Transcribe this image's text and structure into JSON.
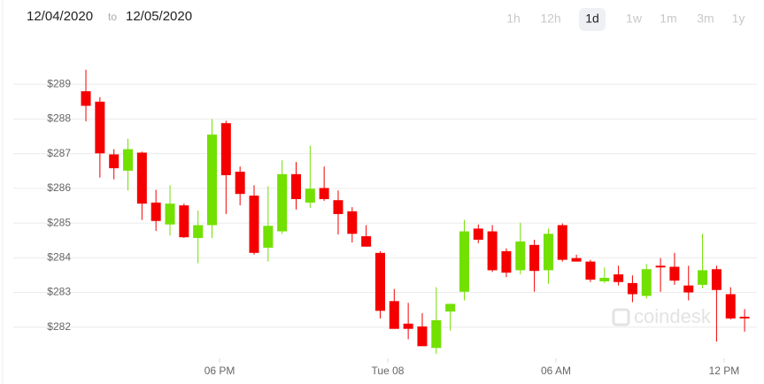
{
  "chart_data": {
    "type": "candlestick",
    "date_from": "12/04/2020",
    "date_sep": "to",
    "date_to": "12/05/2020",
    "ranges": [
      "1h",
      "12h",
      "1d",
      "1w",
      "1m",
      "3m",
      "1y"
    ],
    "selected_range": 2,
    "watermark": "coindesk",
    "up_color": "#72e000",
    "down_color": "#f40000",
    "grid": true,
    "x": [
      0,
      1,
      2,
      3,
      4,
      5,
      6,
      7,
      8,
      9,
      10,
      11,
      12,
      13,
      14,
      15,
      16,
      17,
      18,
      19,
      20,
      21,
      22,
      23,
      24,
      25,
      26,
      27,
      28,
      29,
      30,
      31,
      32,
      33,
      34,
      35,
      36,
      37,
      38,
      39,
      40,
      41,
      42,
      43,
      44,
      45,
      46,
      47
    ],
    "open": [
      288.8,
      288.5,
      286.98,
      286.51,
      287.03,
      285.59,
      284.96,
      285.51,
      284.57,
      284.94,
      287.88,
      286.48,
      285.79,
      284.29,
      284.76,
      286.41,
      285.59,
      286.01,
      285.66,
      285.34,
      284.62,
      284.14,
      282.75,
      282.1,
      282.02,
      281.4,
      282.45,
      283.02,
      284.84,
      284.76,
      284.19,
      283.64,
      284.37,
      283.64,
      284.94,
      283.99,
      283.89,
      283.32,
      283.52,
      283.27,
      282.9,
      283.77,
      283.74,
      283.2,
      283.22,
      283.67,
      282.95,
      282.3
    ],
    "close": [
      288.38,
      287.01,
      286.58,
      287.13,
      285.56,
      285.06,
      285.56,
      284.59,
      284.94,
      287.55,
      286.38,
      285.84,
      284.14,
      284.92,
      286.41,
      285.69,
      285.99,
      285.69,
      285.26,
      284.69,
      284.32,
      282.47,
      281.95,
      281.95,
      281.45,
      282.2,
      282.67,
      284.76,
      284.52,
      283.64,
      283.57,
      284.47,
      283.62,
      284.69,
      283.94,
      283.89,
      283.37,
      283.42,
      283.3,
      282.95,
      283.67,
      283.72,
      283.34,
      283.0,
      283.64,
      283.07,
      282.25,
      282.25
    ],
    "high": [
      289.42,
      288.63,
      287.13,
      287.43,
      287.06,
      285.96,
      286.09,
      285.56,
      285.36,
      288.0,
      287.95,
      286.63,
      286.09,
      286.06,
      286.81,
      286.76,
      287.23,
      286.63,
      285.94,
      285.46,
      284.94,
      284.19,
      283.1,
      282.7,
      282.4,
      283.15,
      282.67,
      285.09,
      284.96,
      284.94,
      284.27,
      285.01,
      284.52,
      284.84,
      284.99,
      284.09,
      283.94,
      283.72,
      283.77,
      283.49,
      283.82,
      283.99,
      284.14,
      283.77,
      284.69,
      283.77,
      283.15,
      282.52
    ],
    "low": [
      287.93,
      286.31,
      286.26,
      285.94,
      285.09,
      284.77,
      284.64,
      284.57,
      283.84,
      284.57,
      285.26,
      285.51,
      284.09,
      283.89,
      284.69,
      285.39,
      285.44,
      285.64,
      284.67,
      284.44,
      284.32,
      282.25,
      281.95,
      281.65,
      281.45,
      281.23,
      281.9,
      282.77,
      284.42,
      283.59,
      283.44,
      283.52,
      283.02,
      283.25,
      283.89,
      283.89,
      283.3,
      283.27,
      283.2,
      282.72,
      282.82,
      283.02,
      283.22,
      282.77,
      283.12,
      281.58,
      282.22,
      281.87
    ],
    "xlim": [
      -0.76,
      47.88
    ],
    "xticks": [
      {
        "value": 9.54,
        "label": "06 PM"
      },
      {
        "value": 21.54,
        "label": "Tue 08"
      },
      {
        "value": 33.54,
        "label": "06 AM"
      },
      {
        "value": 45.54,
        "label": "12 PM"
      }
    ],
    "ylim": [
      281.1,
      289.9
    ],
    "yticks": [
      {
        "value": 282,
        "label": "$282"
      },
      {
        "value": 283,
        "label": "$283"
      },
      {
        "value": 284,
        "label": "$284"
      },
      {
        "value": 285,
        "label": "$285"
      },
      {
        "value": 286,
        "label": "$286"
      },
      {
        "value": 287,
        "label": "$287"
      },
      {
        "value": 288,
        "label": "$288"
      },
      {
        "value": 289,
        "label": "$289"
      }
    ]
  }
}
